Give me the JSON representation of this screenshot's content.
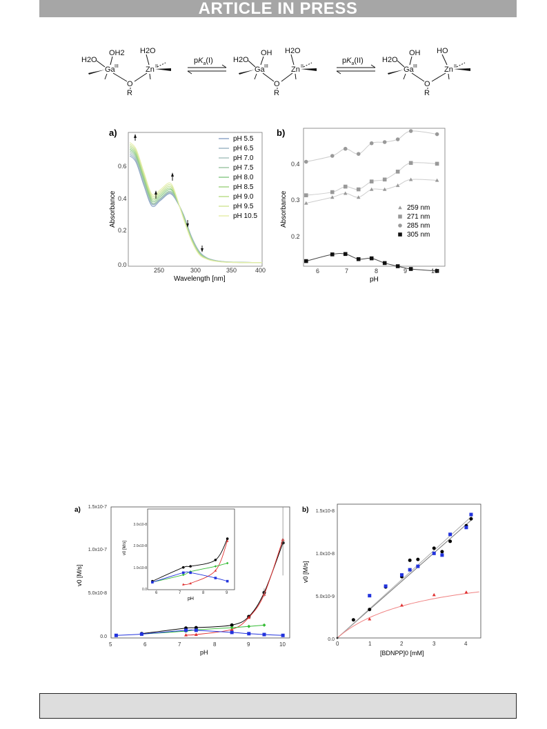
{
  "banner": {
    "text": "ARTICLE IN PRESS"
  },
  "scheme": {
    "s1": {
      "h2o_left": "H2O",
      "oh2_top": "OH2",
      "h2o_zn": "H2O",
      "ga": "Ga",
      "ga_ox": "III",
      "zn": "Zn",
      "zn_ox": "II",
      "o": "O",
      "r": "R"
    },
    "arrow1": {
      "label_p": "p",
      "label_k": "K",
      "label_sub": "a",
      "label_tail": "(I)"
    },
    "s2": {
      "h2o_left": "H2O",
      "oh_top": "OH",
      "h2o_zn": "H2O",
      "ga": "Ga",
      "ga_ox": "III",
      "zn": "Zn",
      "zn_ox": "II",
      "o": "O",
      "r": "R"
    },
    "arrow2": {
      "label_p": "p",
      "label_k": "K",
      "label_sub": "a",
      "label_tail": "(II)"
    },
    "s3": {
      "h2o_left": "H2O",
      "oh_top": "OH",
      "ho_zn": "HO",
      "ga": "Ga",
      "ga_ox": "III",
      "zn": "Zn",
      "zn_ox": "II",
      "o": "O",
      "r": "R"
    }
  },
  "fig1": {
    "panel_a": {
      "label": "a)",
      "xlabel": "Wavelength [nm]",
      "ylabel": "Absorbance",
      "xticks": [
        "250",
        "300",
        "350",
        "400"
      ],
      "yticks": [
        "0.0",
        "0.2",
        "0.4",
        "0.6"
      ],
      "legend": [
        "pH 5.5",
        "pH 6.5",
        "pH 7.0",
        "pH 7.5",
        "pH 8.0",
        "pH 8.5",
        "pH 9.0",
        "pH 9.5",
        "pH 10.5"
      ]
    },
    "panel_b": {
      "label": "b)",
      "xlabel": "pH",
      "ylabel": "Absorbance",
      "xticks": [
        "6",
        "7",
        "8",
        "9",
        "10"
      ],
      "yticks": [
        "0.2",
        "0.3",
        "0.4"
      ],
      "legend": [
        "259 nm",
        "271 nm",
        "285 nm",
        "305 nm"
      ]
    }
  },
  "fig2": {
    "panel_a": {
      "label": "a)",
      "xlabel": "pH",
      "ylabel": "v0 [M/s]",
      "xticks": [
        "5",
        "6",
        "7",
        "8",
        "9",
        "10"
      ],
      "yticks": [
        "0.0",
        "5.0x10-8",
        "1.0x10-7",
        "1.5x10-7"
      ],
      "inset": {
        "xlabel": "pH",
        "ylabel": "v0 [M/s]",
        "xticks": [
          "6",
          "7",
          "8",
          "9"
        ],
        "yticks": [
          "0.0",
          "1.0x10-8",
          "2.0x10-8",
          "3.0x10-8"
        ]
      }
    },
    "panel_b": {
      "label": "b)",
      "xlabel": "[BDNPP]0 [mM]",
      "ylabel": "v0 [M/s]",
      "xticks": [
        "0",
        "1",
        "2",
        "3",
        "4"
      ],
      "yticks": [
        "0.0",
        "5.0x10-9",
        "1.0x10-8",
        "1.5x10-8"
      ]
    }
  },
  "colors": {
    "banner_bg": "#a6a6a6",
    "fig2_black": "#000000",
    "fig2_red": "#e03030",
    "fig2_green": "#33bb33",
    "fig2_blue": "#2233dd"
  },
  "chart_data": [
    {
      "type": "line",
      "xlabel": "Wavelength [nm]",
      "ylabel": "Absorbance",
      "xlim": [
        230,
        400
      ],
      "ylim": [
        -0.02,
        0.78
      ],
      "x": [
        232,
        240,
        250,
        260,
        270,
        280,
        285,
        290,
        300,
        310,
        320,
        330,
        340,
        350,
        360,
        380,
        400
      ],
      "series": [
        {
          "name": "pH 5.5",
          "values": [
            0.64,
            0.6,
            0.46,
            0.34,
            0.37,
            0.41,
            0.41,
            0.38,
            0.29,
            0.16,
            0.07,
            0.03,
            0.015,
            0.008,
            0.005,
            0.003,
            0.002
          ]
        },
        {
          "name": "pH 6.5",
          "values": [
            0.65,
            0.61,
            0.47,
            0.35,
            0.375,
            0.415,
            0.415,
            0.385,
            0.29,
            0.16,
            0.07,
            0.03,
            0.015,
            0.008,
            0.005,
            0.003,
            0.002
          ]
        },
        {
          "name": "pH 7.0",
          "values": [
            0.66,
            0.62,
            0.48,
            0.355,
            0.38,
            0.42,
            0.42,
            0.39,
            0.285,
            0.155,
            0.065,
            0.028,
            0.014,
            0.007,
            0.004,
            0.003,
            0.002
          ]
        },
        {
          "name": "pH 7.5",
          "values": [
            0.67,
            0.63,
            0.49,
            0.36,
            0.385,
            0.425,
            0.425,
            0.39,
            0.28,
            0.15,
            0.063,
            0.027,
            0.013,
            0.007,
            0.004,
            0.003,
            0.002
          ]
        },
        {
          "name": "pH 8.0",
          "values": [
            0.68,
            0.64,
            0.5,
            0.37,
            0.395,
            0.435,
            0.435,
            0.395,
            0.28,
            0.148,
            0.06,
            0.026,
            0.012,
            0.006,
            0.004,
            0.002,
            0.002
          ]
        },
        {
          "name": "pH 8.5",
          "values": [
            0.69,
            0.65,
            0.51,
            0.38,
            0.405,
            0.445,
            0.44,
            0.4,
            0.275,
            0.145,
            0.058,
            0.025,
            0.012,
            0.006,
            0.004,
            0.002,
            0.002
          ]
        },
        {
          "name": "pH 9.0",
          "values": [
            0.7,
            0.66,
            0.52,
            0.39,
            0.415,
            0.455,
            0.45,
            0.405,
            0.27,
            0.14,
            0.055,
            0.024,
            0.011,
            0.006,
            0.003,
            0.002,
            0.002
          ]
        },
        {
          "name": "pH 9.5",
          "values": [
            0.71,
            0.67,
            0.53,
            0.4,
            0.425,
            0.465,
            0.46,
            0.41,
            0.27,
            0.138,
            0.053,
            0.023,
            0.011,
            0.005,
            0.003,
            0.002,
            0.002
          ]
        },
        {
          "name": "pH 10.5",
          "values": [
            0.72,
            0.68,
            0.54,
            0.41,
            0.435,
            0.475,
            0.47,
            0.415,
            0.265,
            0.135,
            0.05,
            0.022,
            0.01,
            0.005,
            0.003,
            0.002,
            0.002
          ]
        }
      ],
      "colors": [
        "#8fa6c8",
        "#9db6c6",
        "#a9c2bf",
        "#9fc7a6",
        "#8ccb8a",
        "#a2d486",
        "#bcde8c",
        "#d2e69a",
        "#e6eeaa"
      ]
    },
    {
      "type": "scatter",
      "xlabel": "pH",
      "ylabel": "Absorbance",
      "xlim": [
        5.4,
        10.8
      ],
      "ylim": [
        0.14,
        0.49
      ],
      "series": [
        {
          "name": "259 nm",
          "x": [
            5.5,
            6.5,
            7.0,
            7.5,
            8.0,
            8.5,
            9.0,
            9.5,
            10.5
          ],
          "y": [
            0.3,
            0.315,
            0.325,
            0.315,
            0.335,
            0.335,
            0.345,
            0.36,
            0.358
          ]
        },
        {
          "name": "271 nm",
          "x": [
            5.5,
            6.5,
            7.0,
            7.5,
            8.0,
            8.5,
            9.0,
            9.5,
            10.5
          ],
          "y": [
            0.32,
            0.328,
            0.342,
            0.335,
            0.355,
            0.36,
            0.38,
            0.402,
            0.4
          ]
        },
        {
          "name": "285 nm",
          "x": [
            5.5,
            6.5,
            7.0,
            7.5,
            8.0,
            8.5,
            9.0,
            9.5,
            10.5
          ],
          "y": [
            0.405,
            0.42,
            0.438,
            0.425,
            0.452,
            0.455,
            0.462,
            0.483,
            0.475
          ]
        },
        {
          "name": "305 nm",
          "x": [
            5.5,
            6.5,
            7.0,
            7.5,
            8.0,
            8.5,
            9.0,
            9.5,
            10.5
          ],
          "y": [
            0.153,
            0.17,
            0.171,
            0.158,
            0.16,
            0.148,
            0.14,
            0.133,
            0.128
          ]
        }
      ]
    },
    {
      "type": "scatter",
      "xlabel": "pH",
      "ylabel": "v0 [M/s]",
      "xlim": [
        5,
        10.25
      ],
      "ylim": [
        -3e-09,
        1.5e-07
      ],
      "series": [
        {
          "x": [
            5.9,
            7.2,
            7.5,
            8.55,
            9.05,
            9.5,
            10.05
          ],
          "y": [
            2e-09,
            8.5e-09,
            9e-09,
            1.2e-08,
            2.2e-08,
            5e-08,
            1.08e-07
          ]
        },
        {
          "x": [
            7.2,
            7.5,
            8.55,
            9.05,
            9.5,
            10.05
          ],
          "y": [
            5e-10,
            1e-09,
            7e-09,
            2.1e-08,
            4.8e-08,
            1.12e-07
          ]
        },
        {
          "x": [
            5.9,
            7.2,
            7.5,
            8.55,
            9.05,
            9.5
          ],
          "y": [
            1.5e-09,
            5e-09,
            6.5e-09,
            9e-09,
            1.05e-08,
            1.2e-08
          ]
        },
        {
          "x": [
            5.15,
            5.9,
            7.2,
            7.5,
            8.55,
            9.05,
            9.5,
            10.05
          ],
          "y": [
            0,
            1.5e-09,
            6e-09,
            6e-09,
            3.5e-09,
            2e-09,
            1e-09,
            0
          ]
        }
      ]
    },
    {
      "type": "scatter",
      "xlabel": "[BDNPP]0 [mM]",
      "ylabel": "v0 [M/s]",
      "xlim": [
        0,
        4.45
      ],
      "ylim": [
        0,
        1.55e-08
      ],
      "series": [
        {
          "x": [
            0.5,
            1.0,
            1.5,
            2.0,
            2.25,
            2.5,
            3.0,
            3.25,
            3.5,
            4.0,
            4.15
          ],
          "y": [
            2.1e-09,
            3.3e-09,
            5.9e-09,
            7.1e-09,
            9e-09,
            9.1e-09,
            1.04e-08,
            1e-08,
            1.12e-08,
            1.3e-08,
            1.38e-08
          ]
        },
        {
          "x": [
            1.0,
            1.5,
            2.0,
            2.25,
            2.5,
            3.0,
            3.25,
            3.5,
            4.0,
            4.15
          ],
          "y": [
            4.9e-09,
            6e-09,
            7.3e-09,
            7.9e-09,
            8.3e-09,
            9.8e-09,
            9.6e-09,
            1.2e-08,
            1.28e-08,
            1.43e-08
          ]
        },
        {
          "x": [
            1.0,
            2.0,
            3.0,
            4.0
          ],
          "y": [
            2.2e-09,
            3.8e-09,
            5e-09,
            5.3e-09
          ]
        }
      ]
    }
  ]
}
